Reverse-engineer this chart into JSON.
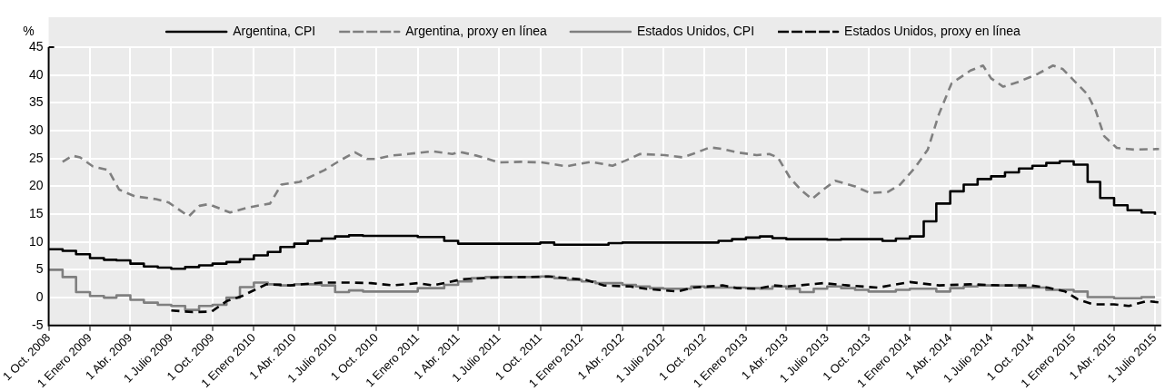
{
  "chart_data": {
    "type": "line",
    "ylabel": "%",
    "legend": "top",
    "grid": true,
    "xlim": [
      "2008-10-01",
      "2015-07-15"
    ],
    "xticks": [
      {
        "value": "2008-10-01",
        "label": "1 Oct. 2008"
      },
      {
        "value": "2009-01-01",
        "label": "1 Enero 2009"
      },
      {
        "value": "2009-04-01",
        "label": "1 Abr. 2009"
      },
      {
        "value": "2009-07-01",
        "label": "1 Julio 2009"
      },
      {
        "value": "2009-10-01",
        "label": "1 Oct. 2009"
      },
      {
        "value": "2010-01-01",
        "label": "1 Enero 2010"
      },
      {
        "value": "2010-04-01",
        "label": "1 Abr. 2010"
      },
      {
        "value": "2010-07-01",
        "label": "1 Julio 2010"
      },
      {
        "value": "2010-10-01",
        "label": "1 Oct. 2010"
      },
      {
        "value": "2011-01-01",
        "label": "1 Enero 2011"
      },
      {
        "value": "2011-04-01",
        "label": "1 Abr. 2011"
      },
      {
        "value": "2011-07-01",
        "label": "1 Julio 2011"
      },
      {
        "value": "2011-10-01",
        "label": "1 Oct. 2011"
      },
      {
        "value": "2012-01-01",
        "label": "1 Enero 2012"
      },
      {
        "value": "2012-04-01",
        "label": "1 Abr. 2012"
      },
      {
        "value": "2012-07-01",
        "label": "1 Julio 2012"
      },
      {
        "value": "2012-10-01",
        "label": "1 Oct. 2012"
      },
      {
        "value": "2013-01-01",
        "label": "1 Enero 2013"
      },
      {
        "value": "2013-04-01",
        "label": "1 Abr. 2013"
      },
      {
        "value": "2013-07-01",
        "label": "1 Julio 2013"
      },
      {
        "value": "2013-10-01",
        "label": "1 Oct. 2013"
      },
      {
        "value": "2014-01-01",
        "label": "1 Enero 2014"
      },
      {
        "value": "2014-04-01",
        "label": "1 Abr. 2014"
      },
      {
        "value": "2014-07-01",
        "label": "1 Julio 2014"
      },
      {
        "value": "2014-10-01",
        "label": "1 Oct. 2014"
      },
      {
        "value": "2015-01-01",
        "label": "1 Enero 2015"
      },
      {
        "value": "2015-04-01",
        "label": "1 Abr. 2015"
      },
      {
        "value": "2015-07-01",
        "label": "1 Julio 2015"
      }
    ],
    "ylim": [
      -5,
      45
    ],
    "yticks": [
      -5,
      0,
      5,
      10,
      15,
      20,
      25,
      30,
      35,
      40,
      45
    ],
    "x": [
      "2008-10",
      "2008-11",
      "2008-12",
      "2009-01",
      "2009-02",
      "2009-03",
      "2009-04",
      "2009-05",
      "2009-06",
      "2009-07",
      "2009-08",
      "2009-09",
      "2009-10",
      "2009-11",
      "2009-12",
      "2010-01",
      "2010-02",
      "2010-03",
      "2010-04",
      "2010-05",
      "2010-06",
      "2010-07",
      "2010-08",
      "2010-09",
      "2010-10",
      "2010-11",
      "2010-12",
      "2011-01",
      "2011-02",
      "2011-03",
      "2011-04",
      "2011-05",
      "2011-06",
      "2011-07",
      "2011-08",
      "2011-09",
      "2011-10",
      "2011-11",
      "2011-12",
      "2012-01",
      "2012-02",
      "2012-03",
      "2012-04",
      "2012-05",
      "2012-06",
      "2012-07",
      "2012-08",
      "2012-09",
      "2012-10",
      "2012-11",
      "2012-12",
      "2013-01",
      "2013-02",
      "2013-03",
      "2013-04",
      "2013-05",
      "2013-06",
      "2013-07",
      "2013-08",
      "2013-09",
      "2013-10",
      "2013-11",
      "2013-12",
      "2014-01",
      "2014-02",
      "2014-03",
      "2014-04",
      "2014-05",
      "2014-06",
      "2014-07",
      "2014-08",
      "2014-09",
      "2014-10",
      "2014-11",
      "2014-12",
      "2015-01",
      "2015-02",
      "2015-03",
      "2015-04",
      "2015-05",
      "2015-06",
      "2015-07"
    ],
    "series": [
      {
        "name": "Argentina, CPI",
        "type": "step",
        "color": "#000000",
        "line_style": "solid",
        "values": [
          8.7,
          8.4,
          7.8,
          7.1,
          6.8,
          6.7,
          6.1,
          5.6,
          5.4,
          5.2,
          5.5,
          5.8,
          6.1,
          6.4,
          6.9,
          7.6,
          8.2,
          9.1,
          9.7,
          10.2,
          10.6,
          11.0,
          11.2,
          11.1,
          11.1,
          11.1,
          11.1,
          10.9,
          10.9,
          10.2,
          9.7,
          9.7,
          9.7,
          9.7,
          9.7,
          9.7,
          9.9,
          9.5,
          9.5,
          9.5,
          9.5,
          9.8,
          9.9,
          9.9,
          9.9,
          9.9,
          9.9,
          9.9,
          9.9,
          10.2,
          10.5,
          10.8,
          11.0,
          10.7,
          10.5,
          10.5,
          10.5,
          10.4,
          10.5,
          10.5,
          10.5,
          10.2,
          10.6,
          11.0,
          13.7,
          16.9,
          19.1,
          20.3,
          21.3,
          21.8,
          22.5,
          23.2,
          23.7,
          24.2,
          24.5,
          23.9,
          20.8,
          17.9,
          16.6,
          15.7,
          15.3,
          14.9
        ]
      },
      {
        "name": "Argentina, proxy en línea",
        "type": "line",
        "color": "#7f7f7f",
        "line_style": "dashed",
        "x": [
          "2008-11-01",
          "2008-11-23",
          "2008-12-10",
          "2009-01-07",
          "2009-02-11",
          "2009-03-07",
          "2009-04-11",
          "2009-05-28",
          "2009-06-25",
          "2009-07-22",
          "2009-08-09",
          "2009-09-02",
          "2009-09-22",
          "2009-11-09",
          "2009-12-19",
          "2010-02-06",
          "2010-03-03",
          "2010-04-13",
          "2010-06-07",
          "2010-07-11",
          "2010-08-14",
          "2010-09-11",
          "2010-10-01",
          "2010-11-01",
          "2010-12-10",
          "2011-02-04",
          "2011-03-19",
          "2011-04-04",
          "2011-05-13",
          "2011-07-01",
          "2011-08-19",
          "2011-10-04",
          "2011-11-28",
          "2012-01-22",
          "2012-03-10",
          "2012-04-07",
          "2012-05-10",
          "2012-07-04",
          "2012-08-13",
          "2012-09-04",
          "2012-10-13",
          "2012-11-10",
          "2012-12-13",
          "2013-01-25",
          "2013-02-22",
          "2013-03-13",
          "2013-04-10",
          "2013-05-07",
          "2013-05-28",
          "2013-06-22",
          "2013-07-19",
          "2013-09-01",
          "2013-10-04",
          "2013-11-13",
          "2013-12-10",
          "2014-01-13",
          "2014-02-10",
          "2014-03-07",
          "2014-04-04",
          "2014-05-16",
          "2014-06-13",
          "2014-07-01",
          "2014-07-28",
          "2014-09-01",
          "2014-10-13",
          "2014-11-16",
          "2014-12-07",
          "2015-01-04",
          "2015-02-01",
          "2015-02-19",
          "2015-03-10",
          "2015-04-07",
          "2015-05-16",
          "2015-07-10"
        ],
        "values": [
          24.4,
          25.5,
          25.2,
          23.6,
          22.9,
          19.4,
          18.2,
          17.7,
          17.1,
          15.6,
          14.6,
          16.5,
          16.8,
          15.3,
          16.2,
          16.9,
          20.3,
          20.8,
          22.9,
          24.6,
          26.1,
          24.9,
          24.9,
          25.5,
          25.8,
          26.3,
          25.8,
          26.2,
          25.5,
          24.3,
          24.4,
          24.3,
          23.6,
          24.4,
          23.7,
          24.6,
          25.8,
          25.6,
          25.2,
          25.8,
          27.0,
          26.7,
          26.1,
          25.6,
          25.8,
          25.2,
          21.4,
          19.1,
          17.7,
          19.4,
          21.0,
          20.0,
          18.8,
          19.0,
          20.3,
          23.4,
          26.6,
          33.0,
          38.5,
          40.8,
          41.7,
          39.4,
          37.9,
          38.8,
          40.2,
          41.7,
          41.1,
          38.8,
          36.5,
          33.6,
          29.0,
          26.9,
          26.6,
          26.7
        ]
      },
      {
        "name": "Estados Unidos, CPI",
        "type": "step",
        "color": "#7f7f7f",
        "line_style": "solid",
        "values": [
          5.0,
          3.7,
          1.0,
          0.3,
          0.0,
          0.4,
          -0.4,
          -0.9,
          -1.3,
          -1.5,
          -2.2,
          -1.5,
          -1.3,
          0.0,
          1.9,
          2.7,
          2.4,
          2.2,
          2.4,
          2.4,
          2.2,
          1.0,
          1.3,
          1.1,
          1.1,
          1.1,
          1.1,
          1.7,
          1.7,
          2.3,
          2.9,
          3.5,
          3.7,
          3.7,
          3.7,
          3.7,
          3.8,
          3.5,
          3.2,
          2.9,
          2.6,
          2.6,
          2.3,
          2.0,
          1.7,
          1.6,
          1.6,
          2.0,
          1.8,
          1.8,
          1.8,
          1.7,
          1.6,
          2.0,
          1.6,
          1.0,
          1.6,
          2.0,
          1.7,
          1.4,
          1.1,
          1.1,
          1.4,
          1.6,
          1.6,
          1.1,
          1.7,
          2.0,
          2.2,
          2.2,
          2.2,
          1.8,
          1.8,
          1.4,
          1.4,
          1.1,
          0.1,
          0.1,
          -0.1,
          -0.1,
          0.1,
          0.1
        ]
      },
      {
        "name": "Estados Unidos, proxy en línea",
        "type": "line",
        "color": "#000000",
        "line_style": "dashed",
        "x": [
          "2009-07-01",
          "2009-08-18",
          "2009-09-29",
          "2009-11-02",
          "2009-12-06",
          "2010-01-03",
          "2010-01-29",
          "2010-03-23",
          "2010-05-30",
          "2010-08-07",
          "2010-09-19",
          "2010-11-07",
          "2011-01-01",
          "2011-02-04",
          "2011-04-10",
          "2011-06-16",
          "2011-08-25",
          "2011-10-19",
          "2012-01-10",
          "2012-02-19",
          "2012-04-19",
          "2012-05-22",
          "2012-08-01",
          "2012-09-04",
          "2012-11-10",
          "2012-12-13",
          "2013-01-25",
          "2013-03-04",
          "2013-04-01",
          "2013-06-22",
          "2013-08-16",
          "2013-10-22",
          "2014-01-01",
          "2014-03-07",
          "2014-05-16",
          "2014-07-22",
          "2014-09-28",
          "2014-11-04",
          "2014-12-13",
          "2015-01-10",
          "2015-02-13",
          "2015-04-01",
          "2015-05-04",
          "2015-06-13",
          "2015-07-15"
        ],
        "values": [
          -2.3,
          -2.6,
          -2.5,
          -0.6,
          0.3,
          1.4,
          2.4,
          2.2,
          2.7,
          2.7,
          2.6,
          2.2,
          2.6,
          2.2,
          3.3,
          3.6,
          3.7,
          3.8,
          3.2,
          2.2,
          2.0,
          1.6,
          1.1,
          1.8,
          2.2,
          1.7,
          1.6,
          2.2,
          2.0,
          2.6,
          2.2,
          1.8,
          2.8,
          2.2,
          2.4,
          2.2,
          2.2,
          1.8,
          1.1,
          -0.3,
          -1.2,
          -1.2,
          -1.5,
          -0.6,
          -0.9
        ]
      }
    ]
  }
}
